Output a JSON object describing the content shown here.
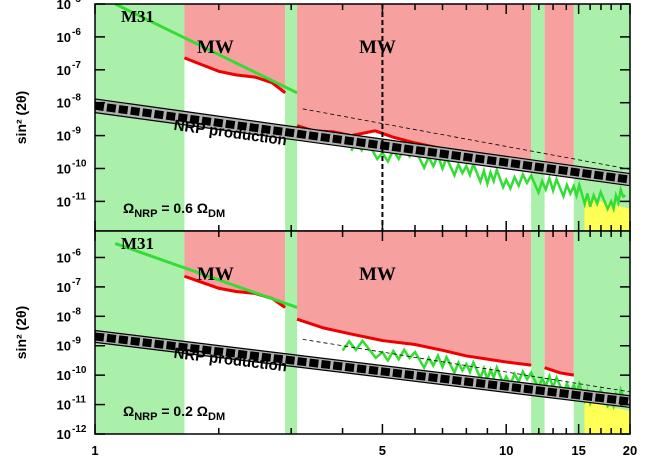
{
  "chart_data": [
    {
      "type": "area",
      "panel": "top",
      "ylabel": "sin² (2θ)",
      "xlim": [
        1,
        20
      ],
      "ylim_log10": [
        -11.9,
        -5
      ],
      "x_scale": "log",
      "y_scale": "log",
      "y_tick_labels": [
        {
          "base": "10",
          "exp": "-5",
          "value": 1e-05
        },
        {
          "base": "10",
          "exp": "-6",
          "value": 1e-06
        },
        {
          "base": "10",
          "exp": "-7",
          "value": 1e-07
        },
        {
          "base": "10",
          "exp": "-8",
          "value": 1e-08
        },
        {
          "base": "10",
          "exp": "-9",
          "value": 1e-09
        },
        {
          "base": "10",
          "exp": "-10",
          "value": 1e-10
        },
        {
          "base": "10",
          "exp": "-11",
          "value": 1e-11
        }
      ],
      "exclusion_regions": [
        {
          "label": "MW",
          "x_range": [
            1.65,
            2.9
          ],
          "y_lower": [
            [
              1.65,
              2.3e-07
            ],
            [
              1.8,
              1.5e-07
            ],
            [
              2.0,
              9e-08
            ],
            [
              2.2,
              7e-08
            ],
            [
              2.45,
              6e-08
            ],
            [
              2.7,
              4e-08
            ],
            [
              2.9,
              2e-08
            ]
          ],
          "color": "#f7a0a0"
        },
        {
          "label": "MW",
          "x_range": [
            3.1,
            11.5
          ],
          "y_lower": [
            [
              3.1,
              2e-09
            ],
            [
              3.4,
              1.4e-09
            ],
            [
              3.8,
              1.3e-09
            ],
            [
              4.2,
              1e-09
            ],
            [
              4.8,
              1.4e-09
            ],
            [
              5.3,
              9e-10
            ],
            [
              6.0,
              6e-10
            ],
            [
              7.0,
              4e-10
            ],
            [
              8.0,
              3.2e-10
            ],
            [
              9.0,
              2.5e-10
            ],
            [
              10.0,
              2e-10
            ],
            [
              11.5,
              1.6e-10
            ]
          ],
          "color": "#f7a0a0"
        },
        {
          "label": "",
          "x_range": [
            12.4,
            14.6
          ],
          "y_lower": [
            [
              12.4,
              1.2e-10
            ],
            [
              13.5,
              1e-10
            ],
            [
              14.6,
              8e-11
            ]
          ],
          "color": "#f7a0a0"
        }
      ],
      "green_regions": [
        {
          "x_range": [
            1,
            1.65
          ],
          "color": "#aaf0aa"
        },
        {
          "x_range": [
            2.9,
            3.1
          ],
          "color": "#aaf0aa"
        },
        {
          "x_range": [
            11.5,
            12.4
          ],
          "color": "#aaf0aa"
        },
        {
          "x_range": [
            14.6,
            20
          ],
          "color": "#aaf0aa"
        }
      ],
      "m31_line": [
        [
          1.12,
          1e-05
        ],
        [
          3.1,
          2e-08
        ]
      ],
      "green_limit": [
        [
          4.2,
          6e-10
        ],
        [
          5,
          3e-10
        ],
        [
          6,
          2.2e-10
        ],
        [
          7,
          1.3e-10
        ],
        [
          8,
          9e-11
        ],
        [
          9,
          6e-11
        ],
        [
          10,
          4.5e-11
        ],
        [
          11.5,
          3.5e-11
        ],
        [
          13,
          2.8e-11
        ],
        [
          14.6,
          2.2e-11
        ],
        [
          16,
          1.2e-11
        ],
        [
          18,
          1e-11
        ],
        [
          19.5,
          1.5e-11
        ]
      ],
      "nrp_band": {
        "label": "NRP production",
        "x": [
          1,
          20
        ],
        "y_lower": [
          5e-09,
          3e-11
        ],
        "y_upper": [
          1.3e-08,
          7e-11
        ]
      },
      "dashed_vline_x": 5,
      "annotation": {
        "text": "Ω",
        "sub1": "NRP",
        "mid": " = 0.6 Ω",
        "sub2": "DM"
      }
    },
    {
      "type": "area",
      "panel": "bottom",
      "ylabel": "sin² (2θ)",
      "xlim": [
        1,
        20
      ],
      "ylim_log10": [
        -12,
        -5.1
      ],
      "x_scale": "log",
      "y_scale": "log",
      "x_tick_labels": [
        {
          "text": "1",
          "value": 1
        },
        {
          "text": "5",
          "value": 5
        },
        {
          "text": "10",
          "value": 10
        },
        {
          "text": "15",
          "value": 15
        },
        {
          "text": "20",
          "value": 20
        }
      ],
      "y_tick_labels": [
        {
          "base": "10",
          "exp": "-6",
          "value": 1e-06
        },
        {
          "base": "10",
          "exp": "-7",
          "value": 1e-07
        },
        {
          "base": "10",
          "exp": "-8",
          "value": 1e-08
        },
        {
          "base": "10",
          "exp": "-9",
          "value": 1e-09
        },
        {
          "base": "10",
          "exp": "-10",
          "value": 1e-10
        },
        {
          "base": "10",
          "exp": "-11",
          "value": 1e-11
        },
        {
          "base": "10",
          "exp": "-12",
          "value": 1e-12
        }
      ],
      "exclusion_regions": [
        {
          "label": "MW",
          "x_range": [
            1.65,
            2.9
          ],
          "y_lower": [
            [
              1.65,
              2.3e-07
            ],
            [
              1.8,
              1.5e-07
            ],
            [
              2.0,
              9e-08
            ],
            [
              2.2,
              7e-08
            ],
            [
              2.45,
              6e-08
            ],
            [
              2.7,
              4e-08
            ],
            [
              2.9,
              2e-08
            ]
          ],
          "color": "#f7a0a0"
        },
        {
          "label": "MW",
          "x_range": [
            3.1,
            11.5
          ],
          "y_lower": [
            [
              3.1,
              8e-09
            ],
            [
              3.6,
              4e-09
            ],
            [
              4.2,
              2.5e-09
            ],
            [
              5.0,
              1.5e-09
            ],
            [
              6.0,
              1.1e-09
            ],
            [
              7.0,
              7e-10
            ],
            [
              8.0,
              4.5e-10
            ],
            [
              9.0,
              3.5e-10
            ],
            [
              10.0,
              2.8e-10
            ],
            [
              11.5,
              2.2e-10
            ]
          ],
          "color": "#f7a0a0"
        },
        {
          "label": "",
          "x_range": [
            12.4,
            14.6
          ],
          "y_lower": [
            [
              12.4,
              1.8e-10
            ],
            [
              13.5,
              1.2e-10
            ],
            [
              14.6,
              1e-10
            ]
          ],
          "color": "#f7a0a0"
        }
      ],
      "green_regions": [
        {
          "x_range": [
            1,
            1.65
          ],
          "color": "#aaf0aa"
        },
        {
          "x_range": [
            2.9,
            3.1
          ],
          "color": "#aaf0aa"
        },
        {
          "x_range": [
            11.5,
            12.4
          ],
          "color": "#aaf0aa"
        },
        {
          "x_range": [
            14.6,
            20
          ],
          "color": "#aaf0aa"
        }
      ],
      "m31_line": [
        [
          1.12,
          3e-06
        ],
        [
          3.1,
          2e-08
        ]
      ],
      "green_limit": [
        [
          4.0,
          1.2e-09
        ],
        [
          5.0,
          6e-10
        ],
        [
          6.0,
          3.5e-10
        ],
        [
          7.0,
          2.5e-10
        ],
        [
          8.0,
          1.8e-10
        ],
        [
          9.0,
          1.2e-10
        ],
        [
          10.0,
          9e-11
        ],
        [
          11.5,
          7e-11
        ],
        [
          13.0,
          5e-11
        ],
        [
          14.6,
          3.5e-11
        ],
        [
          16,
          2e-11
        ],
        [
          18,
          1.5e-11
        ],
        [
          19.5,
          2e-11
        ]
      ],
      "nrp_band": {
        "label": "NRP production",
        "x": [
          1,
          20
        ],
        "y_lower": [
          1.3e-09,
          8e-12
        ],
        "y_upper": [
          3.3e-09,
          2e-11
        ]
      },
      "annotation": {
        "text": "Ω",
        "sub1": "NRP",
        "mid": " = 0.2 Ω",
        "sub2": "DM"
      }
    }
  ],
  "labels": {
    "m31": "M31",
    "mw": "MW"
  },
  "colors": {
    "exclusion": "#f7a0a0",
    "allowed": "#aaf0aa",
    "red_line": "#ee0000",
    "green_line": "#33dd33",
    "band_fill": "#b0b0b0",
    "yellow": "#ffff55"
  }
}
